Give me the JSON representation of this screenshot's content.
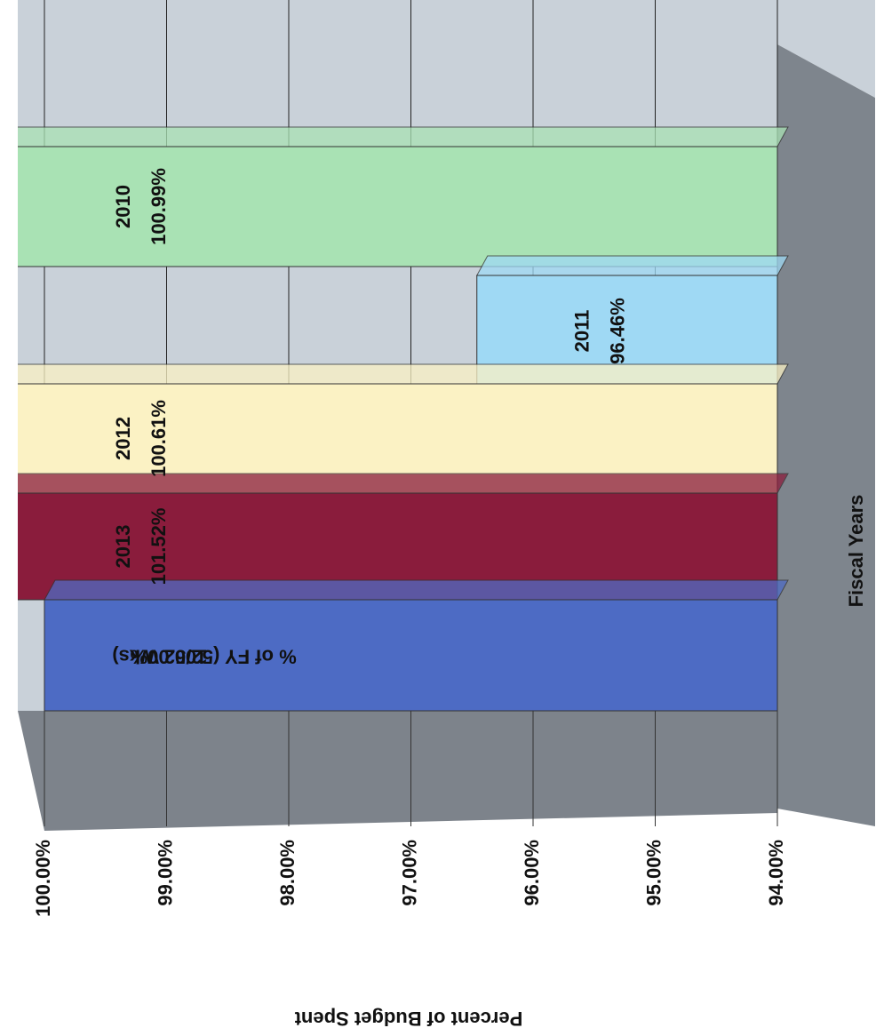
{
  "chart_data": {
    "type": "bar",
    "orientation": "horizontal",
    "xlabel": "Percent of Budget Spent",
    "ylabel": "Fiscal Years",
    "categories": [
      "2010",
      "2011",
      "2012",
      "2013",
      "% of FY (52/52 Wks)"
    ],
    "values": [
      100.99,
      96.46,
      100.61,
      101.52,
      100.0
    ],
    "value_labels": [
      "100.99%",
      "96.46%",
      "100.61%",
      "101.52%",
      "100.00%"
    ],
    "colors": [
      "#a9e2b4",
      "#9fd9f4",
      "#fbf2c4",
      "#8a1c3c",
      "#4d6bc4"
    ],
    "xlim": [
      100,
      94
    ],
    "xticks": [
      {
        "value": 100,
        "label": "100.00%"
      },
      {
        "value": 99,
        "label": "99.00%"
      },
      {
        "value": 98,
        "label": "98.00%"
      },
      {
        "value": 97,
        "label": "97.00%"
      },
      {
        "value": 96,
        "label": "96.00%"
      },
      {
        "value": 95,
        "label": "95.00%"
      },
      {
        "value": 94,
        "label": "94.00%"
      }
    ],
    "grid": true
  }
}
